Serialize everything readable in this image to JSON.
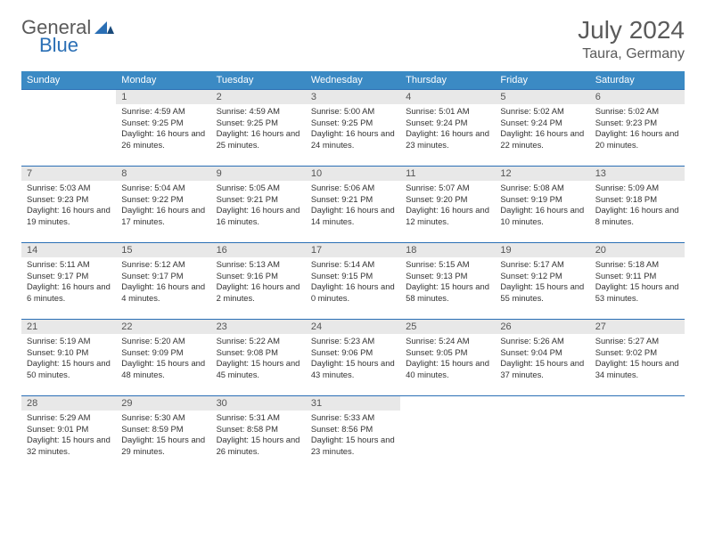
{
  "brand": {
    "general": "General",
    "blue": "Blue"
  },
  "title": "July 2024",
  "location": "Taura, Germany",
  "colors": {
    "header_bg": "#3b8ac4",
    "header_text": "#ffffff",
    "row_border": "#2a6fb5",
    "daynum_bg": "#e8e8e8",
    "text": "#333333",
    "title_text": "#5a5a5a",
    "logo_blue": "#2a6fb5"
  },
  "weekdays": [
    "Sunday",
    "Monday",
    "Tuesday",
    "Wednesday",
    "Thursday",
    "Friday",
    "Saturday"
  ],
  "weeks": [
    [
      {
        "n": "",
        "sunrise": "",
        "sunset": "",
        "daylight": ""
      },
      {
        "n": "1",
        "sunrise": "4:59 AM",
        "sunset": "9:25 PM",
        "daylight": "16 hours and 26 minutes."
      },
      {
        "n": "2",
        "sunrise": "4:59 AM",
        "sunset": "9:25 PM",
        "daylight": "16 hours and 25 minutes."
      },
      {
        "n": "3",
        "sunrise": "5:00 AM",
        "sunset": "9:25 PM",
        "daylight": "16 hours and 24 minutes."
      },
      {
        "n": "4",
        "sunrise": "5:01 AM",
        "sunset": "9:24 PM",
        "daylight": "16 hours and 23 minutes."
      },
      {
        "n": "5",
        "sunrise": "5:02 AM",
        "sunset": "9:24 PM",
        "daylight": "16 hours and 22 minutes."
      },
      {
        "n": "6",
        "sunrise": "5:02 AM",
        "sunset": "9:23 PM",
        "daylight": "16 hours and 20 minutes."
      }
    ],
    [
      {
        "n": "7",
        "sunrise": "5:03 AM",
        "sunset": "9:23 PM",
        "daylight": "16 hours and 19 minutes."
      },
      {
        "n": "8",
        "sunrise": "5:04 AM",
        "sunset": "9:22 PM",
        "daylight": "16 hours and 17 minutes."
      },
      {
        "n": "9",
        "sunrise": "5:05 AM",
        "sunset": "9:21 PM",
        "daylight": "16 hours and 16 minutes."
      },
      {
        "n": "10",
        "sunrise": "5:06 AM",
        "sunset": "9:21 PM",
        "daylight": "16 hours and 14 minutes."
      },
      {
        "n": "11",
        "sunrise": "5:07 AM",
        "sunset": "9:20 PM",
        "daylight": "16 hours and 12 minutes."
      },
      {
        "n": "12",
        "sunrise": "5:08 AM",
        "sunset": "9:19 PM",
        "daylight": "16 hours and 10 minutes."
      },
      {
        "n": "13",
        "sunrise": "5:09 AM",
        "sunset": "9:18 PM",
        "daylight": "16 hours and 8 minutes."
      }
    ],
    [
      {
        "n": "14",
        "sunrise": "5:11 AM",
        "sunset": "9:17 PM",
        "daylight": "16 hours and 6 minutes."
      },
      {
        "n": "15",
        "sunrise": "5:12 AM",
        "sunset": "9:17 PM",
        "daylight": "16 hours and 4 minutes."
      },
      {
        "n": "16",
        "sunrise": "5:13 AM",
        "sunset": "9:16 PM",
        "daylight": "16 hours and 2 minutes."
      },
      {
        "n": "17",
        "sunrise": "5:14 AM",
        "sunset": "9:15 PM",
        "daylight": "16 hours and 0 minutes."
      },
      {
        "n": "18",
        "sunrise": "5:15 AM",
        "sunset": "9:13 PM",
        "daylight": "15 hours and 58 minutes."
      },
      {
        "n": "19",
        "sunrise": "5:17 AM",
        "sunset": "9:12 PM",
        "daylight": "15 hours and 55 minutes."
      },
      {
        "n": "20",
        "sunrise": "5:18 AM",
        "sunset": "9:11 PM",
        "daylight": "15 hours and 53 minutes."
      }
    ],
    [
      {
        "n": "21",
        "sunrise": "5:19 AM",
        "sunset": "9:10 PM",
        "daylight": "15 hours and 50 minutes."
      },
      {
        "n": "22",
        "sunrise": "5:20 AM",
        "sunset": "9:09 PM",
        "daylight": "15 hours and 48 minutes."
      },
      {
        "n": "23",
        "sunrise": "5:22 AM",
        "sunset": "9:08 PM",
        "daylight": "15 hours and 45 minutes."
      },
      {
        "n": "24",
        "sunrise": "5:23 AM",
        "sunset": "9:06 PM",
        "daylight": "15 hours and 43 minutes."
      },
      {
        "n": "25",
        "sunrise": "5:24 AM",
        "sunset": "9:05 PM",
        "daylight": "15 hours and 40 minutes."
      },
      {
        "n": "26",
        "sunrise": "5:26 AM",
        "sunset": "9:04 PM",
        "daylight": "15 hours and 37 minutes."
      },
      {
        "n": "27",
        "sunrise": "5:27 AM",
        "sunset": "9:02 PM",
        "daylight": "15 hours and 34 minutes."
      }
    ],
    [
      {
        "n": "28",
        "sunrise": "5:29 AM",
        "sunset": "9:01 PM",
        "daylight": "15 hours and 32 minutes."
      },
      {
        "n": "29",
        "sunrise": "5:30 AM",
        "sunset": "8:59 PM",
        "daylight": "15 hours and 29 minutes."
      },
      {
        "n": "30",
        "sunrise": "5:31 AM",
        "sunset": "8:58 PM",
        "daylight": "15 hours and 26 minutes."
      },
      {
        "n": "31",
        "sunrise": "5:33 AM",
        "sunset": "8:56 PM",
        "daylight": "15 hours and 23 minutes."
      },
      {
        "n": "",
        "sunrise": "",
        "sunset": "",
        "daylight": ""
      },
      {
        "n": "",
        "sunrise": "",
        "sunset": "",
        "daylight": ""
      },
      {
        "n": "",
        "sunrise": "",
        "sunset": "",
        "daylight": ""
      }
    ]
  ],
  "labels": {
    "sunrise": "Sunrise: ",
    "sunset": "Sunset: ",
    "daylight": "Daylight: "
  }
}
